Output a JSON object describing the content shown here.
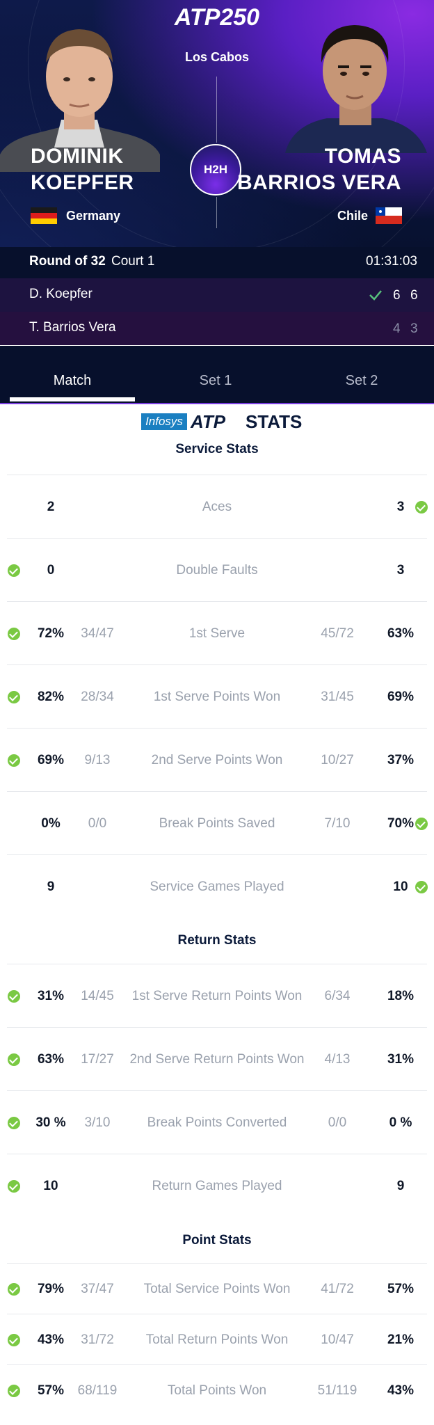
{
  "header": {
    "logo": "ATP250",
    "venue": "Los Cabos",
    "h2h_label": "H2H",
    "player1": {
      "first": "DOMINIK",
      "last": "KOEPFER",
      "country": "Germany"
    },
    "player2": {
      "first": "TOMAS",
      "last": "BARRIOS VERA",
      "country": "Chile"
    }
  },
  "match": {
    "round": "Round of 32",
    "court": "Court 1",
    "duration": "01:31:03",
    "rows": [
      {
        "name": "D. Koepfer",
        "winner": true,
        "set1": "6",
        "set2": "6"
      },
      {
        "name": "T. Barrios Vera",
        "winner": false,
        "set1": "4",
        "set2": "3"
      }
    ]
  },
  "tabs": [
    "Match",
    "Set 1",
    "Set 2"
  ],
  "sponsor": {
    "brand": "Infosys",
    "atp": "ATP",
    "stats": "STATS"
  },
  "sections": {
    "service": "Service Stats",
    "return": "Return Stats",
    "point": "Point Stats"
  },
  "service_stats": [
    {
      "label": "Aces",
      "p1": "2",
      "p1f": "",
      "p2": "3",
      "p2f": "",
      "leader": "p2"
    },
    {
      "label": "Double Faults",
      "p1": "0",
      "p1f": "",
      "p2": "3",
      "p2f": "",
      "leader": "p1"
    },
    {
      "label": "1st Serve",
      "p1": "72%",
      "p1f": "34/47",
      "p2": "63%",
      "p2f": "45/72",
      "leader": "p1"
    },
    {
      "label": "1st Serve Points Won",
      "p1": "82%",
      "p1f": "28/34",
      "p2": "69%",
      "p2f": "31/45",
      "leader": "p1"
    },
    {
      "label": "2nd Serve Points Won",
      "p1": "69%",
      "p1f": "9/13",
      "p2": "37%",
      "p2f": "10/27",
      "leader": "p1"
    },
    {
      "label": "Break Points Saved",
      "p1": "0%",
      "p1f": "0/0",
      "p2": "70%",
      "p2f": "7/10",
      "leader": "p2"
    },
    {
      "label": "Service Games Played",
      "p1": "9",
      "p1f": "",
      "p2": "10",
      "p2f": "",
      "leader": "p2"
    }
  ],
  "return_stats": [
    {
      "label": "1st Serve Return Points Won",
      "p1": "31%",
      "p1f": "14/45",
      "p2": "18%",
      "p2f": "6/34",
      "leader": "p1"
    },
    {
      "label": "2nd Serve Return Points Won",
      "p1": "63%",
      "p1f": "17/27",
      "p2": "31%",
      "p2f": "4/13",
      "leader": "p1"
    },
    {
      "label": "Break Points Converted",
      "p1": "30 %",
      "p1f": "3/10",
      "p2": "0 %",
      "p2f": "0/0",
      "leader": "p1"
    },
    {
      "label": "Return Games Played",
      "p1": "10",
      "p1f": "",
      "p2": "9",
      "p2f": "",
      "leader": "p1"
    }
  ],
  "point_stats": [
    {
      "label": "Total Service Points Won",
      "p1": "79%",
      "p1f": "37/47",
      "p2": "57%",
      "p2f": "41/72",
      "leader": "p1"
    },
    {
      "label": "Total Return Points Won",
      "p1": "43%",
      "p1f": "31/72",
      "p2": "21%",
      "p2f": "10/47",
      "leader": "p1"
    },
    {
      "label": "Total Points Won",
      "p1": "57%",
      "p1f": "68/119",
      "p2": "43%",
      "p2f": "51/119",
      "leader": "p1"
    }
  ],
  "colors": {
    "accent": "#7b3fe0",
    "check": "#7ac943",
    "navy": "#0b1a3a"
  }
}
